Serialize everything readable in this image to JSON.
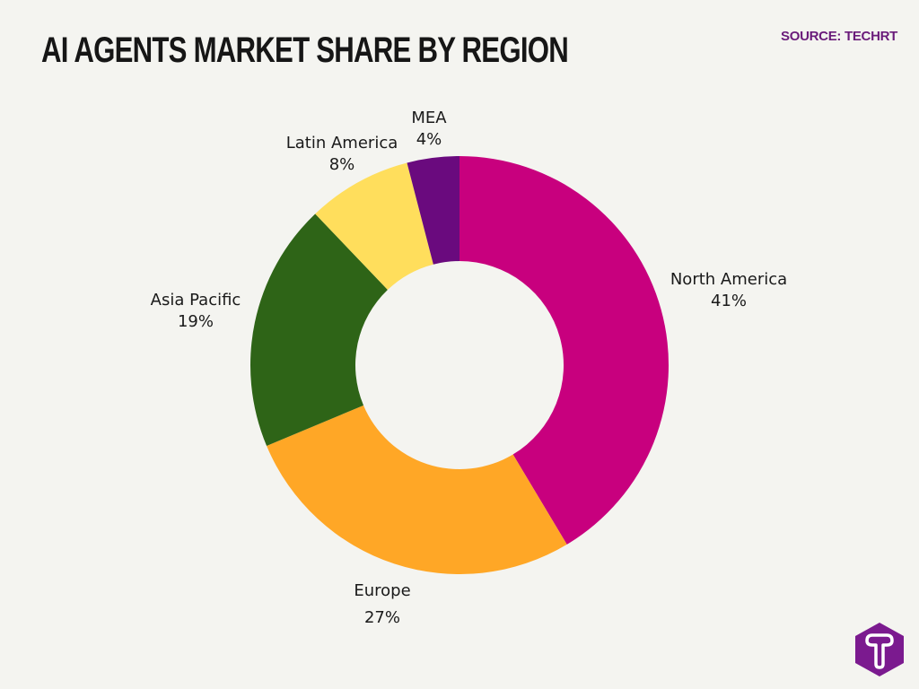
{
  "header": {
    "title": "AI AGENTS MARKET SHARE BY REGION",
    "source": "SOURCE: TECHRT"
  },
  "chart_data": {
    "type": "pie",
    "variant": "donut",
    "title": "AI AGENTS MARKET SHARE BY REGION",
    "categories": [
      "North America",
      "Europe",
      "Asia Pacific",
      "Latin America",
      "MEA"
    ],
    "values": [
      41,
      27,
      19,
      8,
      4
    ],
    "unit": "%",
    "colors": [
      "#C8007E",
      "#FFA726",
      "#2E6417",
      "#FFDE5C",
      "#6A0A7E"
    ],
    "labels": [
      {
        "name": "North America",
        "value": "41%"
      },
      {
        "name": "Europe",
        "value": "27%"
      },
      {
        "name": "Asia Pacific",
        "value": "19%"
      },
      {
        "name": "Latin America",
        "value": "8%"
      },
      {
        "name": "MEA",
        "value": "4%"
      }
    ],
    "legend": "none (direct labels)",
    "start_angle": "12 o'clock, clockwise"
  },
  "logo": {
    "letter": "T",
    "color": "#7B1A8F"
  }
}
